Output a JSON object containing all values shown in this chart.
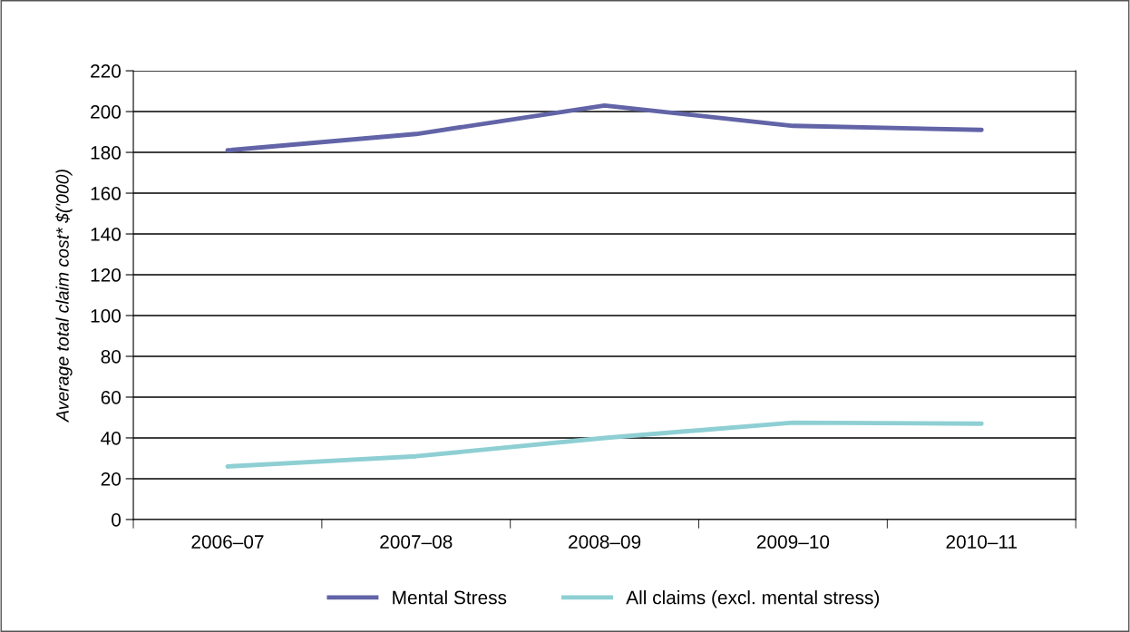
{
  "chart_data": {
    "type": "line",
    "ylabel": "Average total claim cost* $('000)",
    "categories": [
      "2006–07",
      "2007–08",
      "2008–09",
      "2009–10",
      "2010–11"
    ],
    "series": [
      {
        "name": "Mental Stress",
        "color": "#6264a7",
        "values": [
          181,
          189,
          203,
          193,
          191
        ]
      },
      {
        "name": "All claims (excl. mental stress)",
        "color": "#8ecfd3",
        "values": [
          26,
          31,
          40,
          47.5,
          47
        ]
      }
    ],
    "ylim": [
      0,
      220
    ],
    "yticks": [
      0,
      20,
      40,
      60,
      80,
      100,
      120,
      140,
      160,
      180,
      200,
      220
    ],
    "grid": "y",
    "legend": "bottom",
    "marker": "none",
    "line_style": "solid"
  }
}
